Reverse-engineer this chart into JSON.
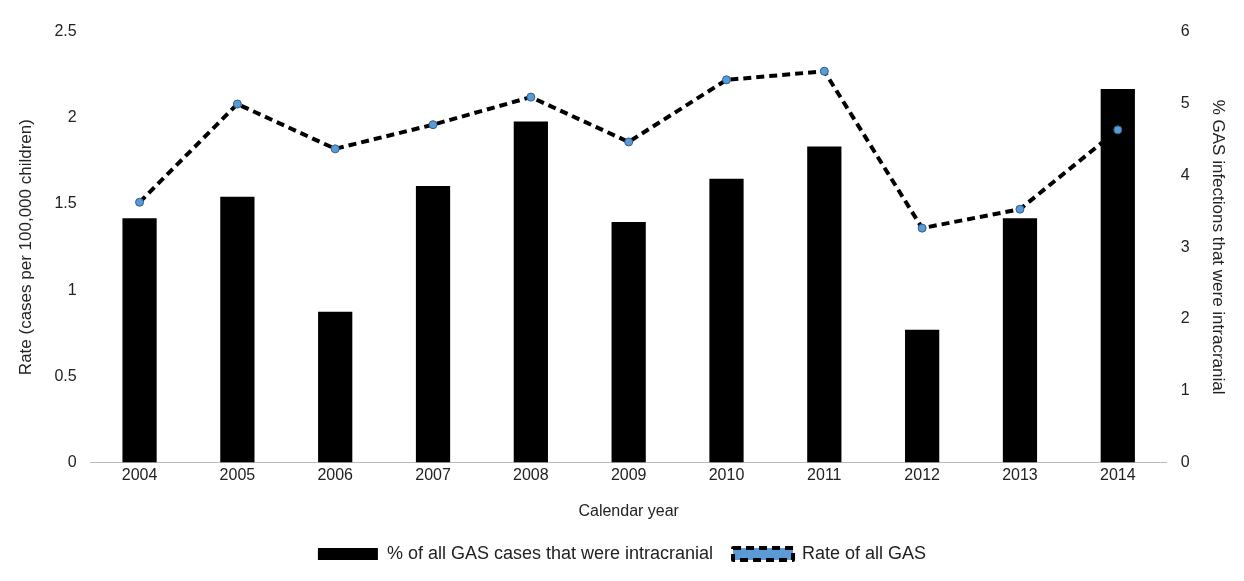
{
  "chart_data": {
    "type": "bar",
    "xlabel": "Calendar year",
    "ylabel": "Rate (cases per 100,000 children)",
    "y2label": "% GAS infections that were intracranial",
    "categories": [
      "2004",
      "2005",
      "2006",
      "2007",
      "2008",
      "2009",
      "2010",
      "2011",
      "2012",
      "2013",
      "2014"
    ],
    "series": [
      {
        "name": "% of all GAS cases that were intracranial",
        "axis": "y2",
        "color": "#000000",
        "values": [
          3.4,
          3.7,
          2.1,
          3.85,
          4.75,
          3.35,
          3.95,
          4.4,
          1.85,
          3.4,
          5.2
        ]
      },
      {
        "name": "Rate of all GAS",
        "type": "line",
        "axis": "y",
        "color": "#000000",
        "marker": "circle",
        "line_style": "dashed",
        "values": [
          1.51,
          2.08,
          1.82,
          1.96,
          2.12,
          1.86,
          2.22,
          2.27,
          1.36,
          1.47,
          1.93
        ]
      }
    ],
    "ylim": [
      0,
      2.5
    ],
    "yticks": [
      0,
      0.5,
      1,
      1.5,
      2,
      2.5
    ],
    "y2lim": [
      0,
      6
    ],
    "y2ticks": [
      0,
      1,
      2,
      3,
      4,
      5,
      6
    ],
    "grid": false,
    "legend": "bottom"
  }
}
